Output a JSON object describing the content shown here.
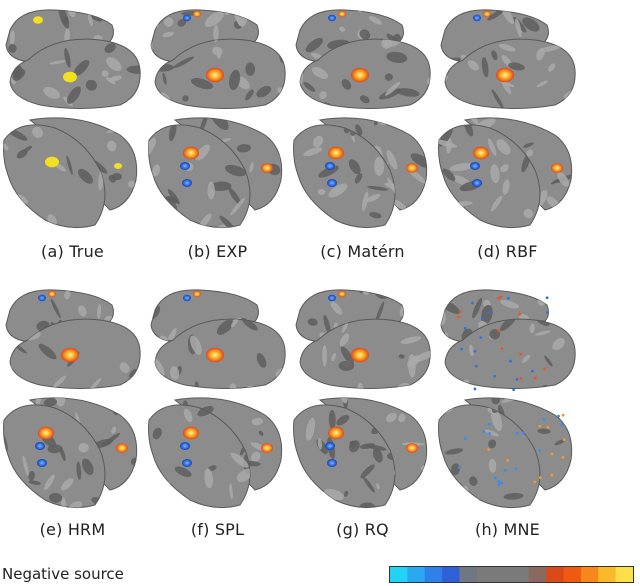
{
  "panels": [
    {
      "caption": "(a) True",
      "blobs": "true"
    },
    {
      "caption": "(b) EXP",
      "blobs": "model"
    },
    {
      "caption": "(c) Matérn",
      "blobs": "model"
    },
    {
      "caption": "(d) RBF",
      "blobs": "model"
    },
    {
      "caption": "(e) HRM",
      "blobs": "model"
    },
    {
      "caption": "(f) SPL",
      "blobs": "model"
    },
    {
      "caption": "(g) RQ",
      "blobs": "model"
    },
    {
      "caption": "(h) MNE",
      "blobs": "mne"
    }
  ],
  "legend": {
    "label": "Negative source",
    "colors": [
      "#22d3f5",
      "#2aa8f0",
      "#2f80e8",
      "#3060d8",
      "#6f7782",
      "#7a7a7a",
      "#7a7a7a",
      "#7a7a7a",
      "#8a6a60",
      "#d84a1a",
      "#f05a10",
      "#f8861a",
      "#fbb82a",
      "#fce04a"
    ]
  }
}
